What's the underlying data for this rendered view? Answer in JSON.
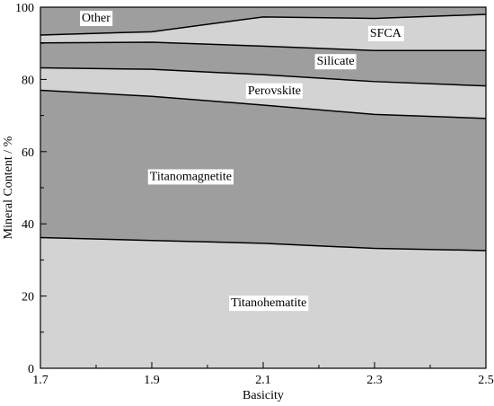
{
  "chart_data": {
    "type": "area",
    "stacked": true,
    "title": "",
    "xlabel": "Basicity",
    "ylabel": "Mineral Content / %",
    "xlim": [
      1.7,
      2.5
    ],
    "ylim": [
      0,
      100
    ],
    "xticks": [
      "1.7",
      "1.9",
      "2.1",
      "2.3",
      "2.5"
    ],
    "yticks": [
      "0",
      "20",
      "40",
      "60",
      "80",
      "100"
    ],
    "x": [
      1.7,
      1.9,
      2.1,
      2.3,
      2.5
    ],
    "grid": false,
    "series": [
      {
        "name": "Titanohematite",
        "boundary": [
          36.2,
          35.4,
          34.6,
          33.2,
          32.6
        ],
        "color": "#d3d3d3"
      },
      {
        "name": "Titanomagnetite",
        "boundary": [
          77.0,
          75.3,
          72.9,
          70.3,
          69.2
        ],
        "color": "#9e9e9e"
      },
      {
        "name": "Perovskite",
        "boundary": [
          83.2,
          82.8,
          81.3,
          79.4,
          78.2
        ],
        "color": "#d3d3d3"
      },
      {
        "name": "Silicate",
        "boundary": [
          90.1,
          90.3,
          89.2,
          88.0,
          88.0
        ],
        "color": "#9e9e9e"
      },
      {
        "name": "SFCA",
        "boundary": [
          92.3,
          93.2,
          97.3,
          96.9,
          98.0
        ],
        "color": "#d3d3d3"
      },
      {
        "name": "Other",
        "boundary": [
          100,
          100,
          100,
          100,
          100
        ],
        "color": "#9e9e9e"
      }
    ],
    "labels": [
      {
        "text": "Titanohematite",
        "x": 2.11,
        "y": 18.0
      },
      {
        "text": "Titanomagnetite",
        "x": 1.97,
        "y": 53.0
      },
      {
        "text": "Perovskite",
        "x": 2.12,
        "y": 76.8
      },
      {
        "text": "Silicate",
        "x": 2.23,
        "y": 84.9
      },
      {
        "text": "SFCA",
        "x": 2.32,
        "y": 92.7
      },
      {
        "text": "Other",
        "x": 1.8,
        "y": 96.9
      }
    ]
  }
}
